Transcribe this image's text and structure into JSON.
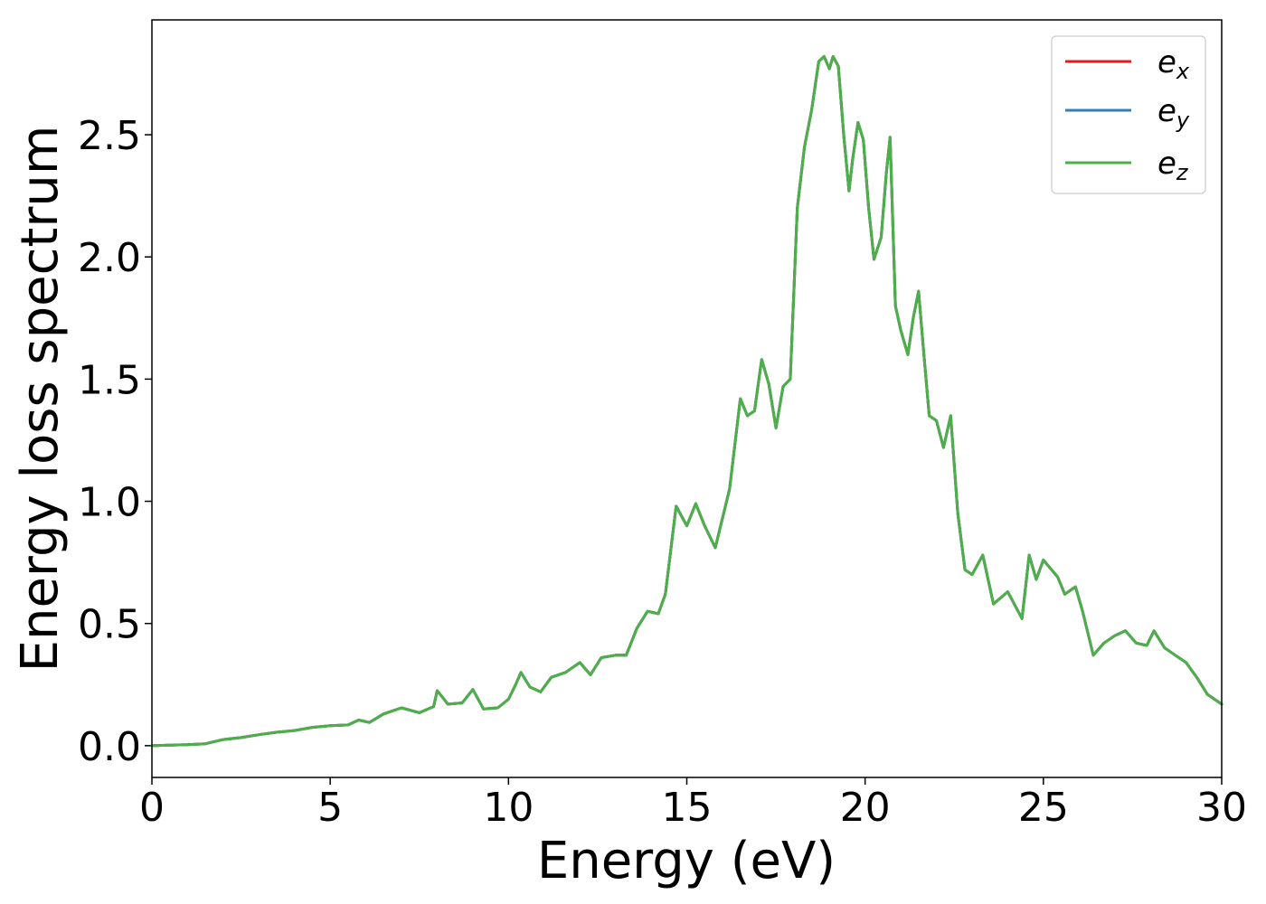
{
  "chart_data": {
    "type": "line",
    "xlabel": "Energy (eV)",
    "ylabel": "Energy loss spectrum",
    "xlim": [
      0,
      30
    ],
    "ylim": [
      -0.13,
      2.97
    ],
    "xticks": [
      "0",
      "5",
      "10",
      "15",
      "20",
      "25",
      "30"
    ],
    "yticks": [
      "0.0",
      "0.5",
      "1.0",
      "1.5",
      "2.0",
      "2.5"
    ],
    "grid": false,
    "legend_position": "top-right",
    "legend_labels": {
      "e_x": {
        "base": "e",
        "sub": "x"
      },
      "e_y": {
        "base": "e",
        "sub": "y"
      },
      "e_z": {
        "base": "e",
        "sub": "z"
      }
    },
    "colors": {
      "e_x": "#e41a1c",
      "e_y": "#377eb8",
      "e_z": "#4daf4a"
    },
    "x": [
      0,
      0.5,
      1.0,
      1.5,
      2.0,
      2.5,
      3.0,
      3.5,
      4.0,
      4.5,
      5.0,
      5.5,
      5.8,
      6.1,
      6.5,
      7.0,
      7.5,
      7.9,
      8.0,
      8.3,
      8.7,
      9.0,
      9.3,
      9.7,
      10.0,
      10.2,
      10.35,
      10.6,
      10.9,
      11.2,
      11.6,
      12.0,
      12.3,
      12.6,
      13.0,
      13.3,
      13.6,
      13.9,
      14.2,
      14.4,
      14.7,
      15.0,
      15.25,
      15.5,
      15.8,
      16.2,
      16.5,
      16.7,
      16.9,
      17.1,
      17.3,
      17.5,
      17.7,
      17.9,
      18.1,
      18.3,
      18.5,
      18.7,
      18.85,
      19.0,
      19.1,
      19.25,
      19.4,
      19.55,
      19.65,
      19.8,
      19.95,
      20.1,
      20.25,
      20.45,
      20.6,
      20.7,
      20.85,
      21.0,
      21.2,
      21.35,
      21.5,
      21.65,
      21.8,
      22.0,
      22.2,
      22.4,
      22.6,
      22.8,
      23.0,
      23.3,
      23.6,
      24.0,
      24.4,
      24.6,
      24.8,
      25.0,
      25.4,
      25.6,
      25.9,
      26.1,
      26.4,
      26.7,
      27.0,
      27.3,
      27.6,
      27.9,
      28.1,
      28.4,
      28.7,
      29.0,
      29.3,
      29.6,
      30.0
    ],
    "series": [
      {
        "name": "e_x",
        "values": [
          0.0,
          0.002,
          0.004,
          0.008,
          0.025,
          0.033,
          0.045,
          0.055,
          0.062,
          0.075,
          0.082,
          0.085,
          0.105,
          0.095,
          0.13,
          0.155,
          0.135,
          0.16,
          0.225,
          0.17,
          0.175,
          0.23,
          0.15,
          0.155,
          0.19,
          0.25,
          0.3,
          0.24,
          0.22,
          0.28,
          0.3,
          0.34,
          0.29,
          0.36,
          0.37,
          0.37,
          0.48,
          0.55,
          0.54,
          0.62,
          0.98,
          0.9,
          0.99,
          0.9,
          0.81,
          1.05,
          1.42,
          1.35,
          1.37,
          1.58,
          1.48,
          1.3,
          1.47,
          1.5,
          2.2,
          2.45,
          2.6,
          2.8,
          2.82,
          2.77,
          2.82,
          2.78,
          2.5,
          2.27,
          2.4,
          2.55,
          2.48,
          2.2,
          1.99,
          2.08,
          2.35,
          2.49,
          1.8,
          1.7,
          1.6,
          1.75,
          1.86,
          1.6,
          1.35,
          1.33,
          1.22,
          1.35,
          0.95,
          0.72,
          0.7,
          0.78,
          0.58,
          0.63,
          0.52,
          0.78,
          0.68,
          0.76,
          0.69,
          0.62,
          0.65,
          0.55,
          0.37,
          0.42,
          0.45,
          0.47,
          0.42,
          0.41,
          0.47,
          0.4,
          0.37,
          0.34,
          0.28,
          0.21,
          0.17
        ]
      },
      {
        "name": "e_y",
        "values": [
          0.0,
          0.002,
          0.004,
          0.008,
          0.025,
          0.033,
          0.045,
          0.055,
          0.062,
          0.075,
          0.082,
          0.085,
          0.105,
          0.095,
          0.13,
          0.155,
          0.135,
          0.16,
          0.225,
          0.17,
          0.175,
          0.23,
          0.15,
          0.155,
          0.19,
          0.25,
          0.3,
          0.24,
          0.22,
          0.28,
          0.3,
          0.34,
          0.29,
          0.36,
          0.37,
          0.37,
          0.48,
          0.55,
          0.54,
          0.62,
          0.98,
          0.9,
          0.99,
          0.9,
          0.81,
          1.05,
          1.42,
          1.35,
          1.37,
          1.58,
          1.48,
          1.3,
          1.47,
          1.5,
          2.2,
          2.45,
          2.6,
          2.8,
          2.82,
          2.77,
          2.82,
          2.78,
          2.5,
          2.27,
          2.4,
          2.55,
          2.48,
          2.2,
          1.99,
          2.08,
          2.35,
          2.49,
          1.8,
          1.7,
          1.6,
          1.75,
          1.86,
          1.6,
          1.35,
          1.33,
          1.22,
          1.35,
          0.95,
          0.72,
          0.7,
          0.78,
          0.58,
          0.63,
          0.52,
          0.78,
          0.68,
          0.76,
          0.69,
          0.62,
          0.65,
          0.55,
          0.37,
          0.42,
          0.45,
          0.47,
          0.42,
          0.41,
          0.47,
          0.4,
          0.37,
          0.34,
          0.28,
          0.21,
          0.17
        ]
      },
      {
        "name": "e_z",
        "values": [
          0.0,
          0.002,
          0.004,
          0.008,
          0.025,
          0.033,
          0.045,
          0.055,
          0.062,
          0.075,
          0.082,
          0.085,
          0.105,
          0.095,
          0.13,
          0.155,
          0.135,
          0.16,
          0.225,
          0.17,
          0.175,
          0.23,
          0.15,
          0.155,
          0.19,
          0.25,
          0.3,
          0.24,
          0.22,
          0.28,
          0.3,
          0.34,
          0.29,
          0.36,
          0.37,
          0.37,
          0.48,
          0.55,
          0.54,
          0.62,
          0.98,
          0.9,
          0.99,
          0.9,
          0.81,
          1.05,
          1.42,
          1.35,
          1.37,
          1.58,
          1.48,
          1.3,
          1.47,
          1.5,
          2.2,
          2.45,
          2.6,
          2.8,
          2.82,
          2.77,
          2.82,
          2.78,
          2.5,
          2.27,
          2.4,
          2.55,
          2.48,
          2.2,
          1.99,
          2.08,
          2.35,
          2.49,
          1.8,
          1.7,
          1.6,
          1.75,
          1.86,
          1.6,
          1.35,
          1.33,
          1.22,
          1.35,
          0.95,
          0.72,
          0.7,
          0.78,
          0.58,
          0.63,
          0.52,
          0.78,
          0.68,
          0.76,
          0.69,
          0.62,
          0.65,
          0.55,
          0.37,
          0.42,
          0.45,
          0.47,
          0.42,
          0.41,
          0.47,
          0.4,
          0.37,
          0.34,
          0.28,
          0.21,
          0.17
        ]
      }
    ]
  }
}
